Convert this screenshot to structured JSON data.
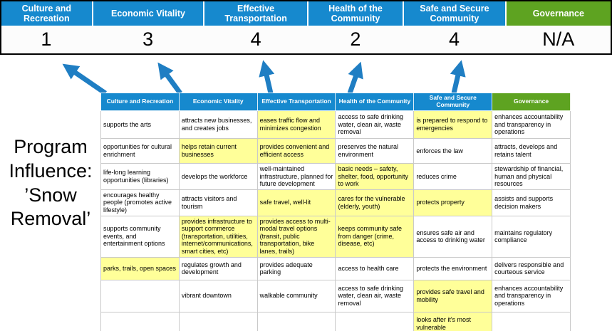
{
  "program_label": "Program Influence: ’Snow Removal’",
  "colors": {
    "header_blue": "#1689CE",
    "header_green": "#5EA321",
    "highlight_yellow": "#FFFF99",
    "arrow_blue": "#1F7EC3"
  },
  "banner": {
    "columns": [
      {
        "label": "Culture and Recreation",
        "score": "1",
        "color": "blue"
      },
      {
        "label": "Economic Vitality",
        "score": "3",
        "color": "blue"
      },
      {
        "label": "Effective Transportation",
        "score": "4",
        "color": "blue"
      },
      {
        "label": "Health of the Community",
        "score": "2",
        "color": "blue"
      },
      {
        "label": "Safe and Secure Community",
        "score": "4",
        "color": "blue"
      },
      {
        "label": "Governance",
        "score": "N/A",
        "color": "green"
      }
    ]
  },
  "matrix": {
    "headers": [
      "Culture and Recreation",
      "Economic Vitality",
      "Effective Transportation",
      "Health of the Community",
      "Safe and Secure Community",
      "Governance"
    ],
    "rows": [
      [
        {
          "text": "supports the arts",
          "hl": false
        },
        {
          "text": "attracts new businesses, and creates jobs",
          "hl": false
        },
        {
          "text": "eases traffic flow and minimizes congestion",
          "hl": true
        },
        {
          "text": "access to safe drinking water, clean air, waste removal",
          "hl": false
        },
        {
          "text": "is prepared to respond to emergencies",
          "hl": true
        },
        {
          "text": "enhances accountability and transparency in operations",
          "hl": false
        }
      ],
      [
        {
          "text": "opportunities for cultural enrichment",
          "hl": false
        },
        {
          "text": "helps retain current businesses",
          "hl": true
        },
        {
          "text": "provides convenient and efficient access",
          "hl": true
        },
        {
          "text": "preserves the natural environment",
          "hl": false
        },
        {
          "text": "enforces the law",
          "hl": false
        },
        {
          "text": "attracts, develops and retains talent",
          "hl": false
        }
      ],
      [
        {
          "text": "life-long learning opportunities (libraries)",
          "hl": false
        },
        {
          "text": "develops the workforce",
          "hl": false
        },
        {
          "text": "well-maintained infrastructure, planned for future development",
          "hl": false
        },
        {
          "text": "basic needs – safety, shelter, food, opportunity to work",
          "hl": true
        },
        {
          "text": "reduces crime",
          "hl": false
        },
        {
          "text": "stewardship of financial, human and physical resources",
          "hl": false
        }
      ],
      [
        {
          "text": "encourages healthy people (promotes active lifestyle)",
          "hl": false
        },
        {
          "text": "attracts visitors and tourism",
          "hl": false
        },
        {
          "text": "safe travel, well-lit",
          "hl": true
        },
        {
          "text": "cares for the vulnerable (elderly, youth)",
          "hl": true
        },
        {
          "text": "protects property",
          "hl": true
        },
        {
          "text": "assists and supports decision makers",
          "hl": false
        }
      ],
      [
        {
          "text": "supports community events, and entertainment options",
          "hl": false
        },
        {
          "text": "provides infrastructure to support commerce (transportation, utilities, internet/communications, smart cities, etc)",
          "hl": true
        },
        {
          "text": "provides access to multi-modal travel options (transit, public transportation, bike lanes, trails)",
          "hl": true
        },
        {
          "text": "keeps community safe from danger (crime, disease, etc)",
          "hl": true
        },
        {
          "text": "ensures safe air and access to drinking water",
          "hl": false
        },
        {
          "text": "maintains regulatory compliance",
          "hl": false
        }
      ],
      [
        {
          "text": "parks, trails, open spaces",
          "hl": true
        },
        {
          "text": "regulates growth and development",
          "hl": false
        },
        {
          "text": "provides adequate parking",
          "hl": false
        },
        {
          "text": "access to health care",
          "hl": false
        },
        {
          "text": "protects the environment",
          "hl": false
        },
        {
          "text": "delivers responsible and courteous service",
          "hl": false
        }
      ],
      [
        {
          "text": "",
          "hl": false
        },
        {
          "text": "vibrant downtown",
          "hl": false
        },
        {
          "text": "walkable community",
          "hl": false
        },
        {
          "text": "access to safe drinking water, clean air, waste removal",
          "hl": false
        },
        {
          "text": "provides safe travel and mobility",
          "hl": true
        },
        {
          "text": "enhances accountability and transparency in operations",
          "hl": false
        }
      ],
      [
        {
          "text": "",
          "hl": false
        },
        {
          "text": "",
          "hl": false
        },
        {
          "text": "",
          "hl": false
        },
        {
          "text": "",
          "hl": false
        },
        {
          "text": "looks after it's most vulnerable",
          "hl": true
        },
        {
          "text": "",
          "hl": false
        }
      ]
    ]
  }
}
